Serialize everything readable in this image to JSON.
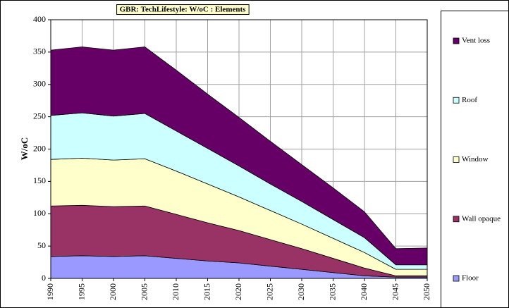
{
  "chart_data": {
    "type": "stacked_area",
    "title": "GBR: TechLifestyle: W/oC : Elements",
    "y_label": "W/oC",
    "x": [
      1990,
      1995,
      2000,
      2005,
      2010,
      2015,
      2020,
      2025,
      2030,
      2035,
      2040,
      2045,
      2050
    ],
    "xlim": [
      1990,
      2050
    ],
    "xticks": [
      1990,
      1995,
      2000,
      2005,
      2010,
      2015,
      2020,
      2025,
      2030,
      2035,
      2040,
      2045,
      2050
    ],
    "ylim": [
      0,
      400
    ],
    "yticks": [
      0,
      50,
      100,
      150,
      200,
      250,
      300,
      350,
      400
    ],
    "grid": true,
    "legend": "right",
    "series": [
      {
        "name": "Floor",
        "color": "#9999ff",
        "values": [
          34,
          35,
          34,
          35,
          31,
          27,
          24,
          19,
          14,
          9,
          4,
          2,
          2
        ]
      },
      {
        "name": "Wall opaque",
        "color": "#993366",
        "values": [
          78,
          78,
          77,
          77,
          68,
          59,
          50,
          41,
          32,
          22,
          12,
          2,
          2
        ]
      },
      {
        "name": "Window",
        "color": "#ffffcc",
        "values": [
          72,
          73,
          72,
          73,
          67,
          60,
          52,
          45,
          38,
          31,
          24,
          10,
          10
        ]
      },
      {
        "name": "Roof",
        "color": "#ccffff",
        "values": [
          68,
          70,
          68,
          70,
          62,
          55,
          48,
          41,
          35,
          29,
          23,
          7,
          7
        ]
      },
      {
        "name": "Vent loss",
        "color": "#660066",
        "values": [
          101,
          102,
          102,
          103,
          94,
          84,
          75,
          66,
          57,
          49,
          40,
          25,
          26
        ]
      }
    ]
  }
}
